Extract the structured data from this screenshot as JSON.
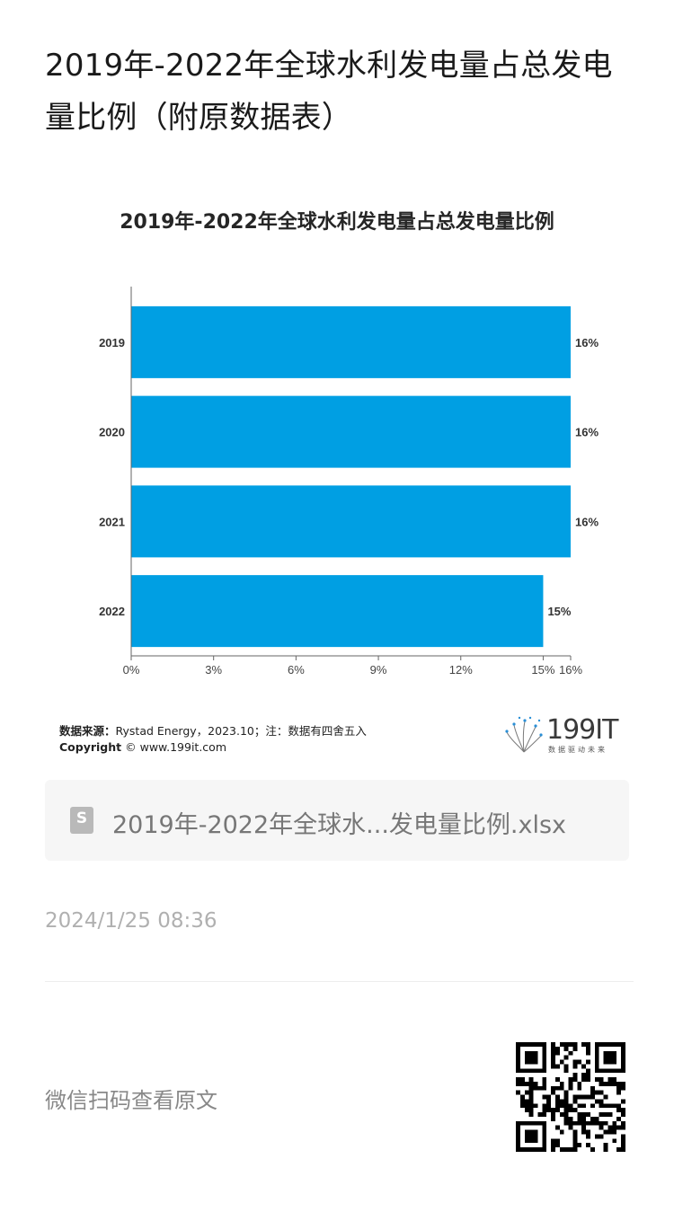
{
  "article": {
    "title": "2019年-2022年全球水利发电量占总发电量比例（附原数据表）",
    "file_name": "2019年-2022年全球水...发电量比例.xlsx",
    "file_icon_letter": "S",
    "timestamp": "2024/1/25 08:36",
    "scan_prompt": "微信扫码查看原文"
  },
  "chart_meta": {
    "source_label": "数据来源：",
    "source_text": "Rystad Energy，2023.10；注：数据有四舍五入",
    "copyright_label": "Copyright",
    "copyright_text": "© www.199it.com",
    "logo_text": "199IT",
    "logo_sub": "数据驱动未来",
    "bar_color": "#009fe3"
  },
  "chart_data": {
    "type": "bar",
    "orientation": "horizontal",
    "title": "2019年-2022年全球水利发电量占总发电量比例",
    "categories": [
      "2019",
      "2020",
      "2021",
      "2022"
    ],
    "values": [
      16,
      16,
      16,
      15
    ],
    "data_labels": [
      "16%",
      "16%",
      "16%",
      "15%"
    ],
    "xlim": [
      0,
      16
    ],
    "x_ticks": [
      0,
      3,
      6,
      9,
      12,
      15,
      16
    ],
    "x_tick_labels": [
      "0%",
      "3%",
      "6%",
      "9%",
      "12%",
      "15%",
      "16%"
    ],
    "xlabel": "",
    "ylabel": "",
    "grid": false,
    "legend": "none"
  }
}
